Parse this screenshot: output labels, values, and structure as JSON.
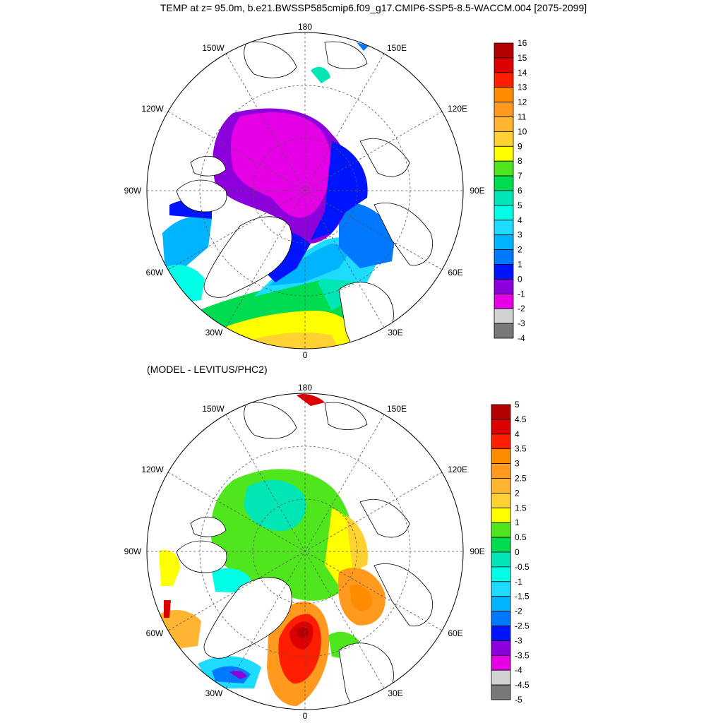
{
  "title": "TEMP at z=  95.0m, b.e21.BWSSP585cmip6.f09_g17.CMIP6-SSP5-8.5-WACCM.004 [2075-2099]",
  "subtitle": "(MODEL - LEVITUS/PHC2)",
  "longitude_labels": {
    "lon_180": "180",
    "lon_150E": "150E",
    "lon_120E": "120E",
    "lon_90E": "90E",
    "lon_60E": "60E",
    "lon_30E": "30E",
    "lon_0": "0",
    "lon_30W": "30W",
    "lon_60W": "60W",
    "lon_90W": "90W",
    "lon_120W": "120W",
    "lon_150W": "150W"
  },
  "top_map": {
    "variable": "TEMP",
    "colorbar": {
      "labels": [
        "16",
        "15",
        "14",
        "13",
        "12",
        "11",
        "10",
        "9",
        "8",
        "7",
        "6",
        "5",
        "4",
        "3",
        "2",
        "1",
        "0",
        "-1",
        "-2",
        "-3",
        "-4"
      ],
      "colors": [
        "#b40000",
        "#dc0000",
        "#ff1e00",
        "#ff8c00",
        "#ff9a1e",
        "#ffb432",
        "#ffd232",
        "#ffff00",
        "#50e61e",
        "#00dc50",
        "#00e6b4",
        "#00ffe6",
        "#1edcff",
        "#00b4ff",
        "#0078ff",
        "#0014ff",
        "#8c00dc",
        "#e600e6",
        "#d2d2d2",
        "#787878"
      ]
    }
  },
  "bottom_map": {
    "variable": "TEMP difference",
    "colorbar": {
      "labels": [
        "5",
        "4.5",
        "4",
        "3.5",
        "3",
        "2.5",
        "2",
        "1.5",
        "1",
        "0.5",
        "0",
        "-0.5",
        "-1",
        "-1.5",
        "-2",
        "-2.5",
        "-3",
        "-3.5",
        "-4",
        "-4.5",
        "-5"
      ],
      "colors": [
        "#b40000",
        "#dc0000",
        "#ff1e00",
        "#ff8c00",
        "#ff9a1e",
        "#ffb432",
        "#ffd232",
        "#ffff00",
        "#50e61e",
        "#00dc50",
        "#00e6b4",
        "#00ffe6",
        "#1edcff",
        "#00b4ff",
        "#0078ff",
        "#0014ff",
        "#8c00dc",
        "#e600e6",
        "#d2d2d2",
        "#787878"
      ]
    }
  }
}
